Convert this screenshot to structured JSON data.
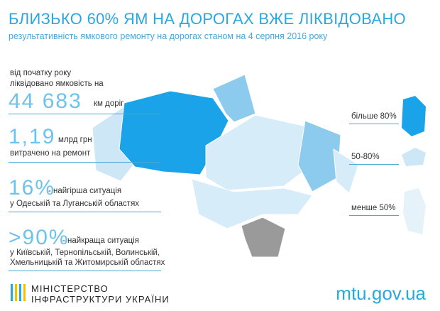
{
  "header": {
    "title": "БЛИЗЬКО 60% ЯМ НА ДОРОГАХ ВЖЕ ЛІКВІДОВАНО",
    "subtitle": "результативність ямкового ремонту на дорогах станом на 4 серпня 2016 року"
  },
  "stats": [
    {
      "lines": [
        "від початку року",
        "ліквідовано ямковість на"
      ],
      "number": "44 683",
      "unit": "км доріг"
    },
    {
      "number": "1,19",
      "unit": "млрд грн",
      "lines": [
        "витрачено на ремонт"
      ]
    },
    {
      "number": "16%",
      "unit": "- найгірша ситуація",
      "lines": [
        "у Одеській та Луганській областях"
      ]
    },
    {
      "number": ">90%",
      "unit": "- найкраща ситуація",
      "lines": [
        "у Київській, Тернопільській, Волинській,",
        "Хмельницькій та Житомирській областях"
      ]
    }
  ],
  "legend": [
    "більше 80%",
    "50-80%",
    "менше 50%"
  ],
  "footer": {
    "ministry": [
      "МІНІСТЕРСТВО",
      "ІНФРАСТРУКТУРИ УКРАЇНИ"
    ],
    "url": "mtu.gov.ua"
  }
}
